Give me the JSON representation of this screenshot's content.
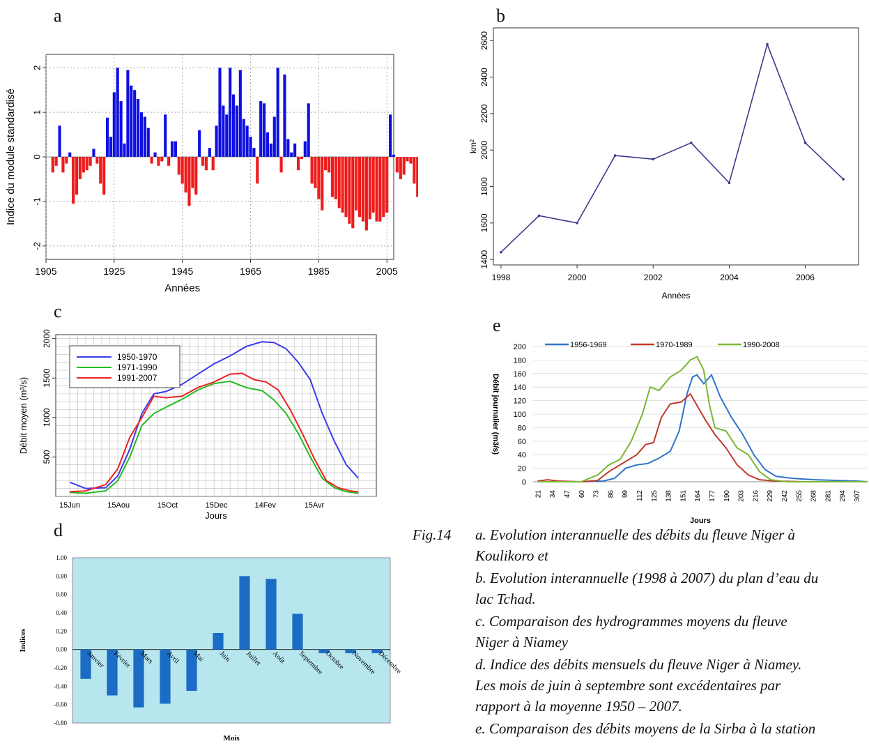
{
  "panels": {
    "a": "a",
    "b": "b",
    "c": "c",
    "d": "d",
    "e": "e"
  },
  "chart_data": [
    {
      "id": "a",
      "type": "bar",
      "ylabel": "Indice du module standardisé",
      "xlabel": "Années",
      "xlim": [
        1905,
        2007
      ],
      "ylim": [
        -2.3,
        2.3
      ],
      "xticks": [
        1905,
        1925,
        1945,
        1965,
        1985,
        2005
      ],
      "yticks": [
        -2,
        -1,
        0,
        1,
        2
      ],
      "grid": true,
      "colors": {
        "positive": "#1010e0",
        "negative": "#ee1c1c"
      },
      "x_start": 1907,
      "values": [
        -0.35,
        -0.2,
        0.7,
        -0.35,
        -0.15,
        0.1,
        -1.05,
        -0.85,
        -0.5,
        -0.35,
        -0.3,
        -0.2,
        0.18,
        -0.15,
        -0.6,
        -0.85,
        0.88,
        0.45,
        1.45,
        2.0,
        1.25,
        0.3,
        1.95,
        1.6,
        1.5,
        1.3,
        1.0,
        0.9,
        0.65,
        -0.15,
        0.1,
        -0.2,
        -0.1,
        0.95,
        -0.2,
        0.35,
        0.35,
        -0.4,
        -0.6,
        -0.8,
        -1.1,
        -0.7,
        -0.85,
        0.6,
        -0.2,
        -0.3,
        0.2,
        -0.3,
        0.7,
        2.0,
        1.15,
        0.95,
        2.0,
        1.4,
        1.15,
        1.95,
        0.85,
        0.7,
        0.45,
        0.2,
        -0.6,
        1.25,
        1.2,
        0.55,
        0.3,
        0.9,
        2.0,
        -0.35,
        1.85,
        0.4,
        0.1,
        0.3,
        -0.3,
        -0.05,
        0.35,
        1.2,
        -0.6,
        -0.7,
        -0.95,
        -1.2,
        -0.3,
        -0.35,
        -0.9,
        -0.95,
        -1.15,
        -1.25,
        -1.35,
        -1.5,
        -1.6,
        -1.2,
        -1.35,
        -1.45,
        -1.65,
        -1.4,
        -1.25,
        -1.45,
        -1.45,
        -1.35,
        -1.25,
        0.95,
        0.05,
        -0.35,
        -0.5,
        -0.4,
        -0.1,
        -0.15,
        -0.6,
        -0.9,
        -0.7,
        -1.05,
        -0.75,
        -0.7
      ]
    },
    {
      "id": "b",
      "type": "line",
      "ylabel": "km²",
      "xlabel": "Années",
      "x": [
        1998,
        1999,
        2000,
        2001,
        2002,
        2003,
        2004,
        2005,
        2006,
        2007
      ],
      "values": [
        1440,
        1640,
        1600,
        1970,
        1950,
        2040,
        1820,
        2580,
        2040,
        1840
      ],
      "xticks": [
        1998,
        2000,
        2002,
        2004,
        2006
      ],
      "yticks": [
        1400,
        1600,
        1800,
        2000,
        2200,
        2400,
        2600
      ],
      "xlim": [
        1997.8,
        2007.4
      ],
      "ylim": [
        1370,
        2670
      ],
      "color": "#3a3a8c"
    },
    {
      "id": "c",
      "type": "line",
      "ylabel": "Débit moyen (m³/s)",
      "xlabel": "Jours",
      "categories": [
        "15Jun",
        "15Aou",
        "15Oct",
        "15Dec",
        "14Fev",
        "15Avr"
      ],
      "yticks": [
        500,
        1000,
        1500,
        2000
      ],
      "ylim": [
        0,
        2050
      ],
      "legend_position": "top-left",
      "series": [
        {
          "name": "1950-1970",
          "color": "#3a3aee",
          "points": [
            [
              0,
              180
            ],
            [
              20,
              100
            ],
            [
              45,
              110
            ],
            [
              60,
              260
            ],
            [
              75,
              600
            ],
            [
              90,
              1050
            ],
            [
              105,
              1300
            ],
            [
              120,
              1330
            ],
            [
              140,
              1420
            ],
            [
              160,
              1550
            ],
            [
              180,
              1680
            ],
            [
              200,
              1780
            ],
            [
              220,
              1900
            ],
            [
              240,
              1960
            ],
            [
              255,
              1950
            ],
            [
              270,
              1870
            ],
            [
              285,
              1700
            ],
            [
              300,
              1480
            ],
            [
              315,
              1050
            ],
            [
              330,
              700
            ],
            [
              345,
              400
            ],
            [
              360,
              230
            ]
          ]
        },
        {
          "name": "1971-1990",
          "color": "#22bb22",
          "points": [
            [
              0,
              50
            ],
            [
              20,
              40
            ],
            [
              45,
              70
            ],
            [
              60,
              200
            ],
            [
              75,
              500
            ],
            [
              90,
              900
            ],
            [
              105,
              1050
            ],
            [
              120,
              1130
            ],
            [
              140,
              1230
            ],
            [
              160,
              1350
            ],
            [
              180,
              1430
            ],
            [
              200,
              1460
            ],
            [
              220,
              1380
            ],
            [
              240,
              1340
            ],
            [
              255,
              1220
            ],
            [
              270,
              1050
            ],
            [
              285,
              800
            ],
            [
              300,
              500
            ],
            [
              315,
              230
            ],
            [
              330,
              110
            ],
            [
              345,
              60
            ],
            [
              360,
              40
            ]
          ]
        },
        {
          "name": "1991-2007",
          "color": "#ee2222",
          "points": [
            [
              0,
              60
            ],
            [
              20,
              70
            ],
            [
              45,
              150
            ],
            [
              60,
              350
            ],
            [
              75,
              750
            ],
            [
              90,
              1000
            ],
            [
              105,
              1270
            ],
            [
              120,
              1250
            ],
            [
              140,
              1270
            ],
            [
              160,
              1380
            ],
            [
              180,
              1450
            ],
            [
              200,
              1550
            ],
            [
              215,
              1560
            ],
            [
              230,
              1480
            ],
            [
              245,
              1450
            ],
            [
              260,
              1350
            ],
            [
              275,
              1100
            ],
            [
              290,
              800
            ],
            [
              305,
              480
            ],
            [
              320,
              200
            ],
            [
              335,
              110
            ],
            [
              350,
              70
            ],
            [
              360,
              55
            ]
          ]
        }
      ]
    },
    {
      "id": "d",
      "type": "bar",
      "ylabel": "Indices",
      "xlabel": "Mois",
      "categories": [
        "Janvier",
        "Février",
        "Mars",
        "Avril",
        "Mai",
        "Juin",
        "Juillet",
        "Août",
        "Septembre",
        "Octobre",
        "Novembre",
        "Décembre"
      ],
      "values": [
        -0.32,
        -0.5,
        -0.63,
        -0.59,
        -0.45,
        0.18,
        0.8,
        0.77,
        0.39,
        -0.04,
        -0.04,
        -0.04
      ],
      "yticks": [
        -0.8,
        -0.6,
        -0.4,
        -0.2,
        0.0,
        0.2,
        0.4,
        0.6,
        0.8,
        1.0
      ],
      "ytick_labels": [
        "-0.80",
        "-0.60",
        "-0.40",
        "-0.20",
        "0.00",
        "0.20",
        "0.40",
        "0.60",
        "0.80",
        "1.00"
      ],
      "ylim": [
        -0.8,
        1.0
      ],
      "bar_color": "#1b6cc4",
      "plot_bg": "#b7e6ef"
    },
    {
      "id": "e",
      "type": "line",
      "ylabel": "Débit journalier (m3/s)",
      "xlabel": "Jours",
      "xticks": [
        21,
        34,
        47,
        60,
        73,
        86,
        99,
        112,
        125,
        138,
        151,
        164,
        177,
        190,
        203,
        216,
        229,
        242,
        255,
        268,
        281,
        294,
        307
      ],
      "yticks": [
        0,
        20,
        40,
        60,
        80,
        100,
        120,
        140,
        160,
        180,
        200
      ],
      "xlim": [
        17,
        317
      ],
      "ylim": [
        0,
        200
      ],
      "legend_position": "top",
      "series": [
        {
          "name": "1956-1969",
          "color": "#2e75c8",
          "points": [
            [
              21,
              0
            ],
            [
              60,
              0
            ],
            [
              80,
              1
            ],
            [
              90,
              5
            ],
            [
              100,
              20
            ],
            [
              110,
              25
            ],
            [
              120,
              27
            ],
            [
              130,
              35
            ],
            [
              140,
              45
            ],
            [
              148,
              75
            ],
            [
              155,
              130
            ],
            [
              160,
              155
            ],
            [
              164,
              158
            ],
            [
              170,
              145
            ],
            [
              177,
              158
            ],
            [
              185,
              125
            ],
            [
              195,
              95
            ],
            [
              205,
              70
            ],
            [
              215,
              40
            ],
            [
              225,
              18
            ],
            [
              235,
              8
            ],
            [
              250,
              5
            ],
            [
              270,
              3
            ],
            [
              307,
              1
            ],
            [
              317,
              0
            ]
          ]
        },
        {
          "name": "1970-1989",
          "color": "#c0392b",
          "points": [
            [
              21,
              1
            ],
            [
              30,
              3
            ],
            [
              40,
              1
            ],
            [
              60,
              0
            ],
            [
              75,
              2
            ],
            [
              85,
              15
            ],
            [
              100,
              30
            ],
            [
              110,
              40
            ],
            [
              118,
              55
            ],
            [
              125,
              58
            ],
            [
              132,
              95
            ],
            [
              140,
              115
            ],
            [
              150,
              118
            ],
            [
              158,
              130
            ],
            [
              165,
              110
            ],
            [
              172,
              90
            ],
            [
              180,
              70
            ],
            [
              190,
              50
            ],
            [
              200,
              25
            ],
            [
              210,
              10
            ],
            [
              220,
              3
            ],
            [
              235,
              1
            ],
            [
              260,
              0
            ],
            [
              317,
              0
            ]
          ]
        },
        {
          "name": "1990-2008",
          "color": "#7ab630",
          "points": [
            [
              21,
              0
            ],
            [
              60,
              0
            ],
            [
              75,
              10
            ],
            [
              85,
              25
            ],
            [
              95,
              33
            ],
            [
              105,
              60
            ],
            [
              115,
              100
            ],
            [
              122,
              140
            ],
            [
              130,
              135
            ],
            [
              140,
              155
            ],
            [
              150,
              165
            ],
            [
              158,
              180
            ],
            [
              164,
              185
            ],
            [
              170,
              165
            ],
            [
              175,
              115
            ],
            [
              180,
              80
            ],
            [
              190,
              75
            ],
            [
              200,
              50
            ],
            [
              210,
              40
            ],
            [
              220,
              15
            ],
            [
              230,
              3
            ],
            [
              245,
              0
            ],
            [
              317,
              0
            ]
          ]
        }
      ]
    }
  ],
  "caption": {
    "fig": "Fig.14",
    "lines": [
      "a. Evolution interannuelle des débits du fleuve Niger à",
      "Koulikoro et",
      "b. Evolution interannuelle (1998 à 2007) du plan d’eau du",
      "lac Tchad.",
      "c. Comparaison des hydrogrammes moyens du fleuve",
      "Niger à Niamey",
      "d. Indice des débits mensuels du fleuve Niger à Niamey.",
      "Les mois de juin à septembre sont   excédentaires par",
      "rapport à la moyenne 1950 – 2007.",
      "e. Comparaison des débits moyens de la Sirba à la station"
    ]
  }
}
